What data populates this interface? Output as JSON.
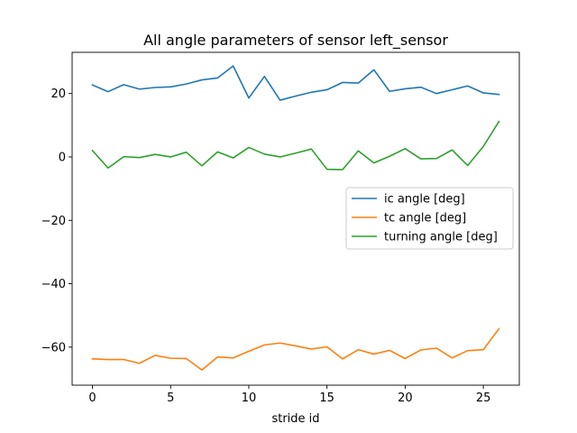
{
  "chart_data": {
    "type": "line",
    "title": "All angle parameters of sensor left_sensor",
    "xlabel": "stride id",
    "ylabel": "",
    "xlim": [
      -1.3,
      27.3
    ],
    "ylim": [
      -72,
      33
    ],
    "xticks": [
      0,
      5,
      10,
      15,
      20,
      25
    ],
    "yticks": [
      20,
      0,
      -20,
      -40,
      -60
    ],
    "grid": false,
    "legend_position": "center-right",
    "x": [
      0,
      1,
      2,
      3,
      4,
      5,
      6,
      7,
      8,
      9,
      10,
      11,
      12,
      13,
      14,
      15,
      16,
      17,
      18,
      19,
      20,
      21,
      22,
      23,
      24,
      25,
      26
    ],
    "series": [
      {
        "name": "ic angle [deg]",
        "color": "#1f77b4",
        "values": [
          22.7,
          20.6,
          22.8,
          21.4,
          21.9,
          22.1,
          23.0,
          24.3,
          24.9,
          28.7,
          18.6,
          25.4,
          17.9,
          19.2,
          20.4,
          21.2,
          23.5,
          23.3,
          27.5,
          20.7,
          21.5,
          22.0,
          20.0,
          21.2,
          22.4,
          20.2,
          19.7
        ]
      },
      {
        "name": "tc angle [deg]",
        "color": "#ff7f0e",
        "values": [
          -63.7,
          -63.9,
          -63.9,
          -65.1,
          -62.6,
          -63.5,
          -63.6,
          -67.2,
          -63.1,
          -63.4,
          -61.3,
          -59.3,
          -58.7,
          -59.6,
          -60.6,
          -59.9,
          -63.7,
          -60.8,
          -62.2,
          -61.0,
          -63.6,
          -60.9,
          -60.3,
          -63.4,
          -61.1,
          -60.8,
          -54.2
        ]
      },
      {
        "name": "turning angle [deg]",
        "color": "#2ca02c",
        "values": [
          2.0,
          -3.5,
          0.1,
          -0.2,
          0.8,
          0.0,
          1.5,
          -2.8,
          1.6,
          -0.3,
          3.0,
          0.9,
          0.0,
          1.2,
          2.5,
          -3.9,
          -4.0,
          1.9,
          -1.9,
          0.2,
          2.6,
          -0.6,
          -0.5,
          2.2,
          -2.7,
          3.3,
          11.2
        ]
      }
    ]
  }
}
